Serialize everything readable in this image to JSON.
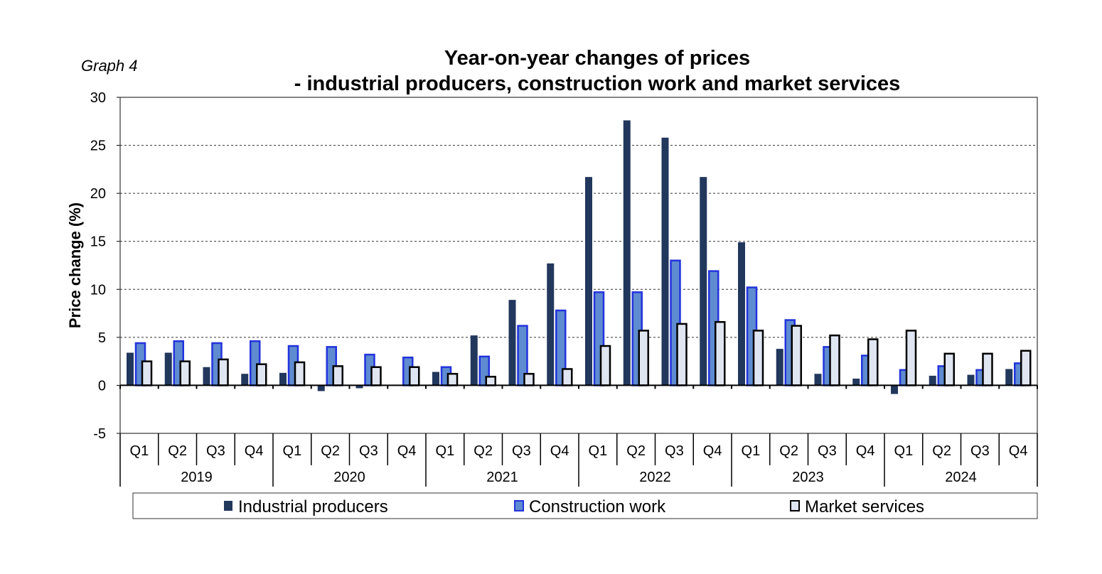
{
  "chart_data": {
    "type": "bar",
    "label": "Graph 4",
    "title": [
      "Year-on-year changes of prices",
      "- industrial producers, construction work and market services"
    ],
    "ylabel": "Price change (%)",
    "ylim": [
      -5,
      30
    ],
    "yticks": [
      -5,
      0,
      5,
      10,
      15,
      20,
      25,
      30
    ],
    "grid": true,
    "years": [
      "2019",
      "2020",
      "2021",
      "2022",
      "2023",
      "2024"
    ],
    "quarters": [
      "Q1",
      "Q2",
      "Q3",
      "Q4"
    ],
    "legend_position": "bottom",
    "series": [
      {
        "name": "Industrial producers",
        "color": "#22375c",
        "values": [
          3.4,
          3.4,
          1.9,
          1.2,
          1.3,
          -0.6,
          -0.3,
          0.0,
          1.4,
          5.2,
          8.9,
          12.7,
          21.7,
          27.6,
          25.8,
          21.7,
          14.9,
          3.8,
          1.2,
          0.7,
          -0.9,
          1.0,
          1.1,
          1.7
        ]
      },
      {
        "name": "Construction work",
        "color": "#5f8bd0",
        "values": [
          4.4,
          4.6,
          4.4,
          4.6,
          4.1,
          4.0,
          3.2,
          2.9,
          1.9,
          3.0,
          6.2,
          7.8,
          9.7,
          9.7,
          13.0,
          11.9,
          10.2,
          6.8,
          4.0,
          3.1,
          1.6,
          2.0,
          1.6,
          2.3
        ]
      },
      {
        "name": "Market services",
        "color": "#dfe5f1",
        "values": [
          2.5,
          2.5,
          2.7,
          2.2,
          2.4,
          2.0,
          1.9,
          1.9,
          1.2,
          0.9,
          1.2,
          1.7,
          4.1,
          5.7,
          6.4,
          6.6,
          5.7,
          6.2,
          5.2,
          4.8,
          5.7,
          3.3,
          3.3,
          3.6
        ]
      }
    ]
  }
}
